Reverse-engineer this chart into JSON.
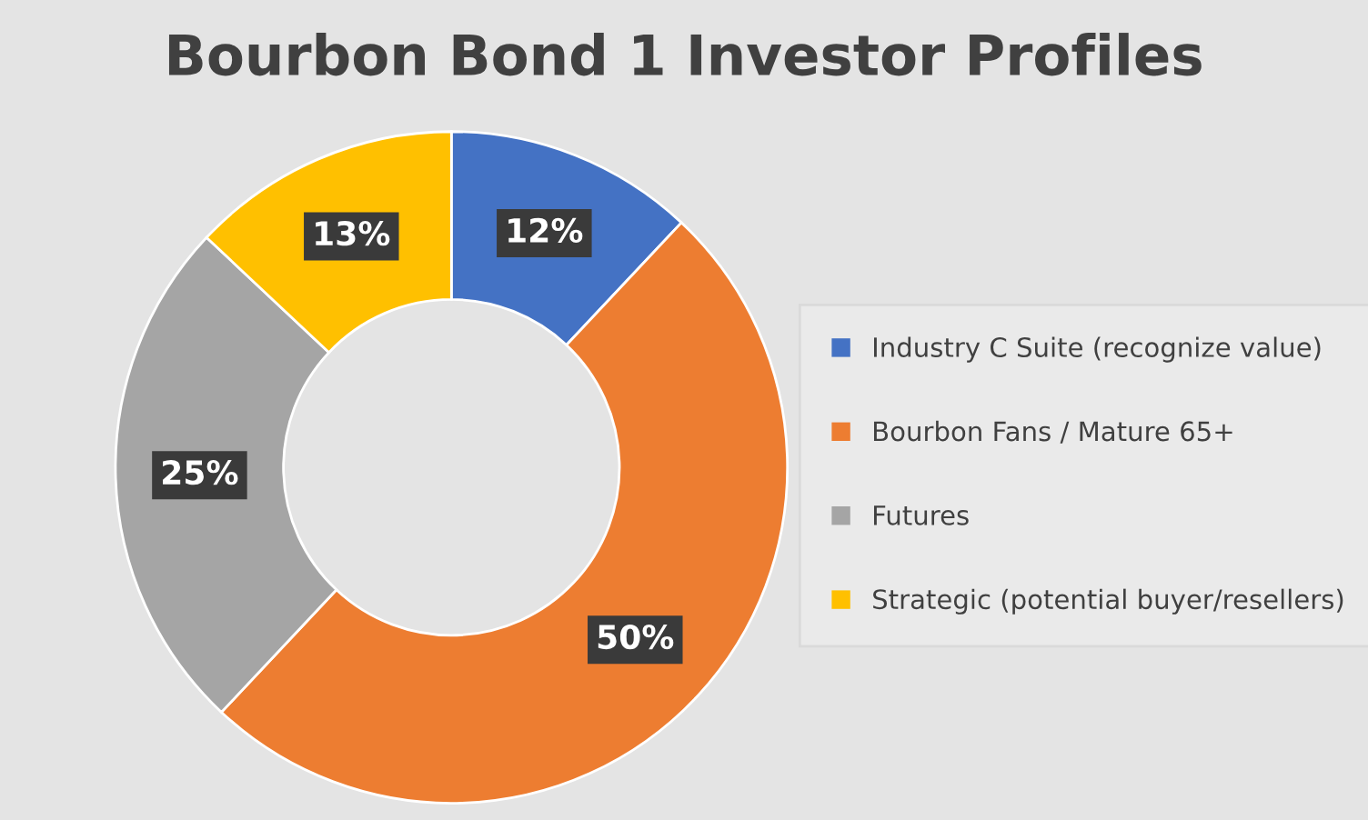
{
  "chart_data": {
    "type": "donut",
    "title": "Bourbon Bond 1 Investor Profiles",
    "categories": [
      "Industry C Suite (recognize value)",
      "Bourbon Fans / Mature 65+",
      "Futures",
      "Strategic (potential buyer/resellers)"
    ],
    "values": [
      12,
      50,
      25,
      13
    ],
    "colors": [
      "#4472c4",
      "#ed7d31",
      "#a5a5a5",
      "#ffc000"
    ],
    "value_labels": [
      "12%",
      "50%",
      "25%",
      "13%"
    ],
    "legend": "right"
  }
}
